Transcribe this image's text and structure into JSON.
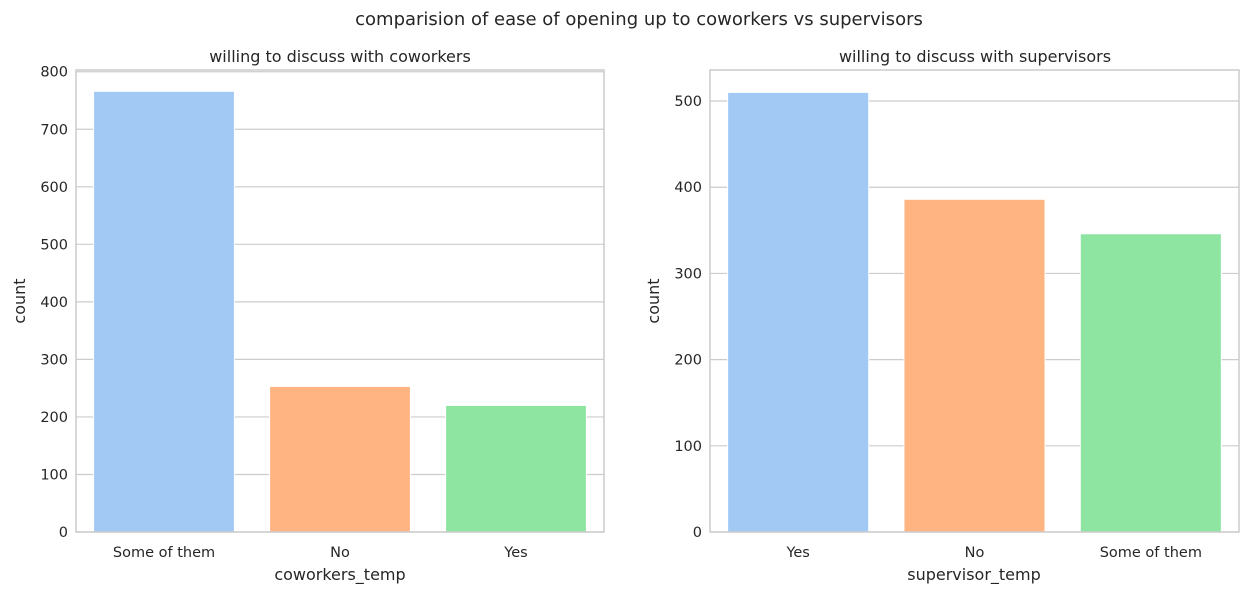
{
  "figure": {
    "title": "comparision of ease of opening up to coworkers vs supervisors"
  },
  "chart_data": [
    {
      "type": "bar",
      "title": "willing to discuss with coworkers",
      "xlabel": "coworkers_temp",
      "ylabel": "count",
      "categories": [
        "Some of them",
        "No",
        "Yes"
      ],
      "values": [
        766,
        253,
        220
      ],
      "colors": [
        "#a1c9f4",
        "#ffb482",
        "#8de5a1"
      ],
      "ylim": [
        0,
        803
      ],
      "yticks": [
        0,
        100,
        200,
        300,
        400,
        500,
        600,
        700,
        800
      ],
      "grid": "y"
    },
    {
      "type": "bar",
      "title": "willing to discuss with supervisors",
      "xlabel": "supervisor_temp",
      "ylabel": "count",
      "categories": [
        "Yes",
        "No",
        "Some of them"
      ],
      "values": [
        510,
        386,
        346
      ],
      "colors": [
        "#a1c9f4",
        "#ffb482",
        "#8de5a1"
      ],
      "ylim": [
        0,
        536
      ],
      "yticks": [
        0,
        100,
        200,
        300,
        400,
        500
      ],
      "grid": "y"
    }
  ]
}
